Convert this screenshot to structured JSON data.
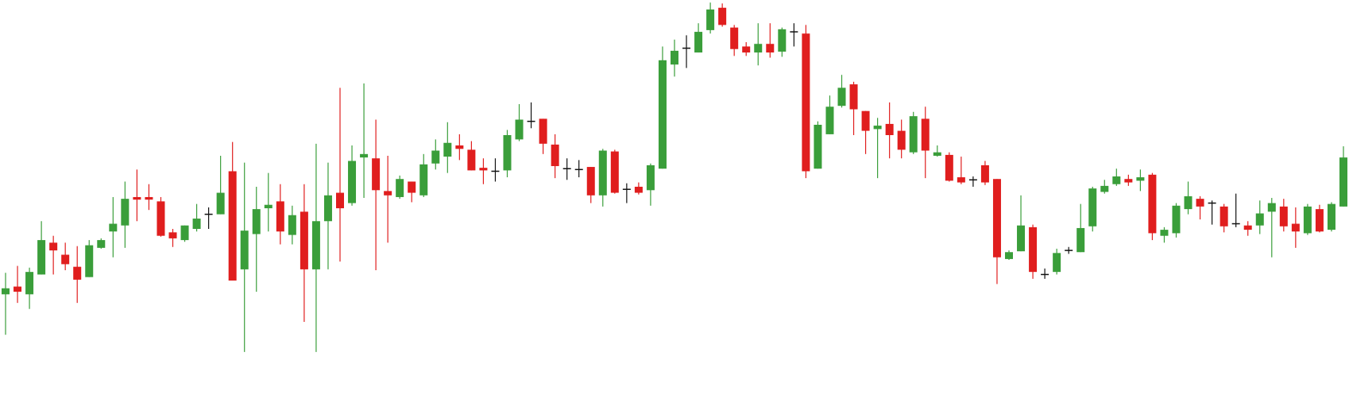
{
  "chart_data": {
    "type": "candlestick",
    "open": [
      117,
      126,
      117,
      140,
      177,
      163,
      149,
      137,
      171,
      190,
      197,
      230,
      230,
      225,
      189,
      180,
      193,
      210,
      210,
      260,
      146,
      187,
      217,
      225,
      186,
      213,
      146,
      202,
      235,
      223,
      276,
      275,
      237,
      230,
      248,
      232,
      269,
      277,
      290,
      285,
      264,
      260,
      261,
      297,
      318,
      321,
      291,
      263,
      262,
      265,
      232,
      283,
      239,
      242,
      238,
      263,
      384,
      403,
      398,
      424,
      450,
      427,
      405,
      398,
      408,
      399,
      422,
      420,
      263,
      303,
      336,
      361,
      330,
      309,
      315,
      307,
      282,
      321,
      278,
      279,
      253,
      250,
      267,
      251,
      158,
      167,
      195,
      140,
      143,
      168,
      166,
      196,
      236,
      245,
      251,
      249,
      256,
      185,
      188,
      216,
      228,
      223,
      219,
      199,
      197,
      197,
      213,
      219,
      199,
      188,
      216,
      192,
      219
    ],
    "high": [
      142,
      150,
      148,
      202,
      185,
      177,
      173,
      180,
      182,
      230,
      248,
      262,
      245,
      230,
      193,
      197,
      222,
      218,
      278,
      294,
      270,
      242,
      258,
      245,
      220,
      245,
      292,
      270,
      357,
      290,
      362,
      320,
      278,
      255,
      248,
      280,
      297,
      317,
      303,
      295,
      275,
      275,
      308,
      338,
      340,
      321,
      303,
      275,
      273,
      265,
      286,
      285,
      246,
      247,
      269,
      405,
      413,
      418,
      432,
      456,
      455,
      430,
      410,
      432,
      432,
      427,
      432,
      430,
      318,
      348,
      372,
      364,
      330,
      322,
      340,
      320,
      329,
      335,
      290,
      282,
      277,
      254,
      272,
      251,
      168,
      232,
      198,
      147,
      170,
      172,
      222,
      242,
      250,
      263,
      256,
      262,
      258,
      195,
      223,
      248,
      231,
      226,
      222,
      234,
      202,
      226,
      229,
      228,
      218,
      222,
      221,
      224,
      289
    ],
    "low": [
      70,
      107,
      100,
      140,
      140,
      145,
      107,
      137,
      170,
      160,
      171,
      202,
      215,
      184,
      172,
      178,
      190,
      193,
      210,
      133,
      50,
      120,
      190,
      175,
      175,
      85,
      50,
      146,
      155,
      220,
      229,
      145,
      177,
      228,
      224,
      230,
      262,
      258,
      273,
      261,
      245,
      248,
      253,
      295,
      310,
      280,
      252,
      250,
      253,
      223,
      219,
      234,
      223,
      233,
      220,
      263,
      370,
      380,
      398,
      420,
      428,
      394,
      394,
      383,
      392,
      393,
      405,
      252,
      263,
      303,
      334,
      302,
      280,
      252,
      275,
      275,
      280,
      252,
      277,
      248,
      245,
      242,
      244,
      129,
      157,
      167,
      135,
      135,
      140,
      164,
      166,
      190,
      234,
      243,
      243,
      237,
      180,
      177,
      183,
      210,
      204,
      198,
      189,
      195,
      185,
      187,
      160,
      190,
      171,
      186,
      189,
      190,
      219
    ],
    "close": [
      124,
      120,
      143,
      180,
      168,
      152,
      134,
      174,
      180,
      199,
      228,
      227,
      227,
      185,
      182,
      197,
      205,
      210,
      235,
      133,
      191,
      216,
      221,
      190,
      209,
      146,
      202,
      232,
      217,
      272,
      280,
      238,
      232,
      251,
      235,
      268,
      284,
      293,
      286,
      261,
      261,
      260,
      302,
      320,
      318,
      292,
      266,
      263,
      262,
      232,
      284,
      235,
      239,
      235,
      267,
      389,
      400,
      403,
      422,
      448,
      430,
      402,
      398,
      408,
      398,
      425,
      422,
      260,
      314,
      335,
      357,
      332,
      307,
      313,
      302,
      285,
      324,
      284,
      282,
      249,
      247,
      250,
      247,
      160,
      166,
      197,
      143,
      140,
      165,
      168,
      194,
      240,
      243,
      254,
      247,
      253,
      188,
      192,
      220,
      231,
      219,
      223,
      196,
      199,
      192,
      211,
      223,
      196,
      190,
      219,
      190,
      222,
      276
    ],
    "up_color": "#3a9e3a",
    "down_color": "#e01e1e",
    "doji_color": "#111111",
    "ylim": [
      0,
      459
    ]
  }
}
